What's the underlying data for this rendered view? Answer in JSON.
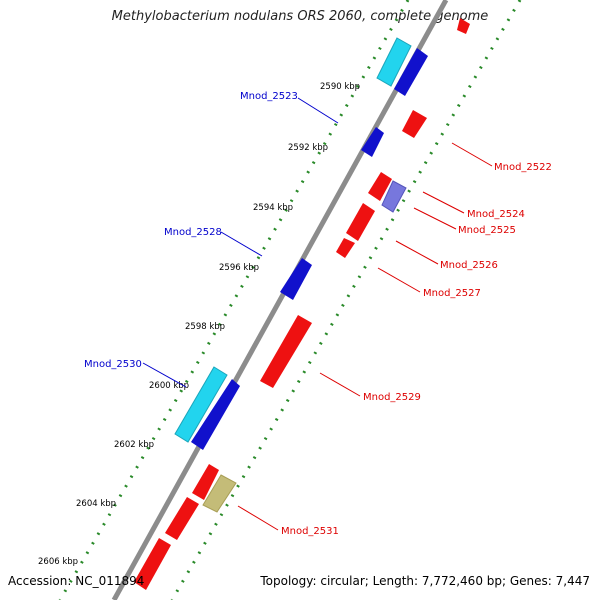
{
  "title": "Methylobacterium nodulans ORS 2060, complete genome",
  "accession": "Accession: NC_011894",
  "stats": "Topology: circular; Length: 7,772,460 bp; Genes: 7,447",
  "colors": {
    "backbone": "#8c8c8c",
    "forward_gene": "#ee1111",
    "reverse_gene": "#1111cc",
    "cyan_feature": "#22d4ee",
    "purple_feature": "#7777dd",
    "olive_feature": "#c4bc78",
    "tick_forward": "#2a8a2a",
    "tick_reverse": "#2a8a2a",
    "forward_label": "#dd0000",
    "reverse_label": "#0000cc"
  },
  "scale_labels": [
    "2590 kbp",
    "2592 kbp",
    "2594 kbp",
    "2596 kbp",
    "2598 kbp",
    "2600 kbp",
    "2602 kbp",
    "2604 kbp",
    "2606 kbp"
  ],
  "reverse_gene_labels": [
    "Mnod_2523",
    "Mnod_2528",
    "Mnod_2530"
  ],
  "forward_gene_labels": [
    "Mnod_2522",
    "Mnod_2524",
    "Mnod_2525",
    "Mnod_2526",
    "Mnod_2527",
    "Mnod_2529",
    "Mnod_2531"
  ]
}
